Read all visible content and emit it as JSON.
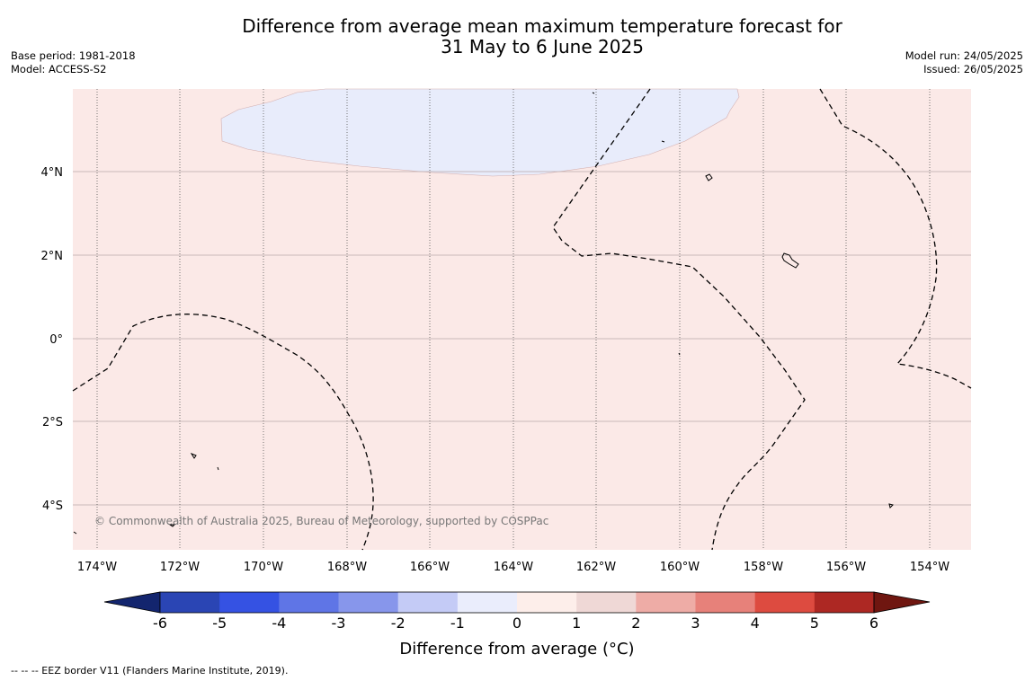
{
  "title": {
    "line1": "Difference from average mean maximum temperature forecast for",
    "line2": "31 May to 6 June 2025"
  },
  "meta_left": {
    "base_period": "Base period: 1981-2018",
    "model": "Model: ACCESS-S2"
  },
  "meta_right": {
    "model_run": "Model run: 24/05/2025",
    "issued": "Issued: 26/05/2025"
  },
  "map": {
    "lon_labels": [
      "174°W",
      "172°W",
      "170°W",
      "168°W",
      "166°W",
      "164°W",
      "162°W",
      "160°W",
      "158°W",
      "156°W",
      "154°W"
    ],
    "lat_labels": [
      "4°N",
      "2°N",
      "0°",
      "2°S",
      "4°S"
    ],
    "copyright": "© Commonwealth of Australia 2025, Bureau of Meteorology, supported by COSPPac",
    "colors": {
      "background_anomaly": "#fbe9e7",
      "cool_patch": "#e8ecfb",
      "gridline": "#b8a8a8",
      "lon_gridline": "#555555"
    }
  },
  "colorbar": {
    "label": "Difference from average (°C)",
    "ticks": [
      "-6",
      "-5",
      "-4",
      "-3",
      "-2",
      "-1",
      "0",
      "1",
      "2",
      "3",
      "4",
      "5",
      "6"
    ],
    "colors": [
      "#13256e",
      "#2a45b4",
      "#3552e3",
      "#5f75e6",
      "#8796eb",
      "#c4cbf6",
      "#eaedfc",
      "#fdeeea",
      "#efd8d6",
      "#eeaca6",
      "#e7817a",
      "#dd4b40",
      "#ad2823",
      "#6f1610"
    ]
  },
  "footnote": "--  --  -- EEZ border V11 (Flanders Marine Institute, 2019)."
}
